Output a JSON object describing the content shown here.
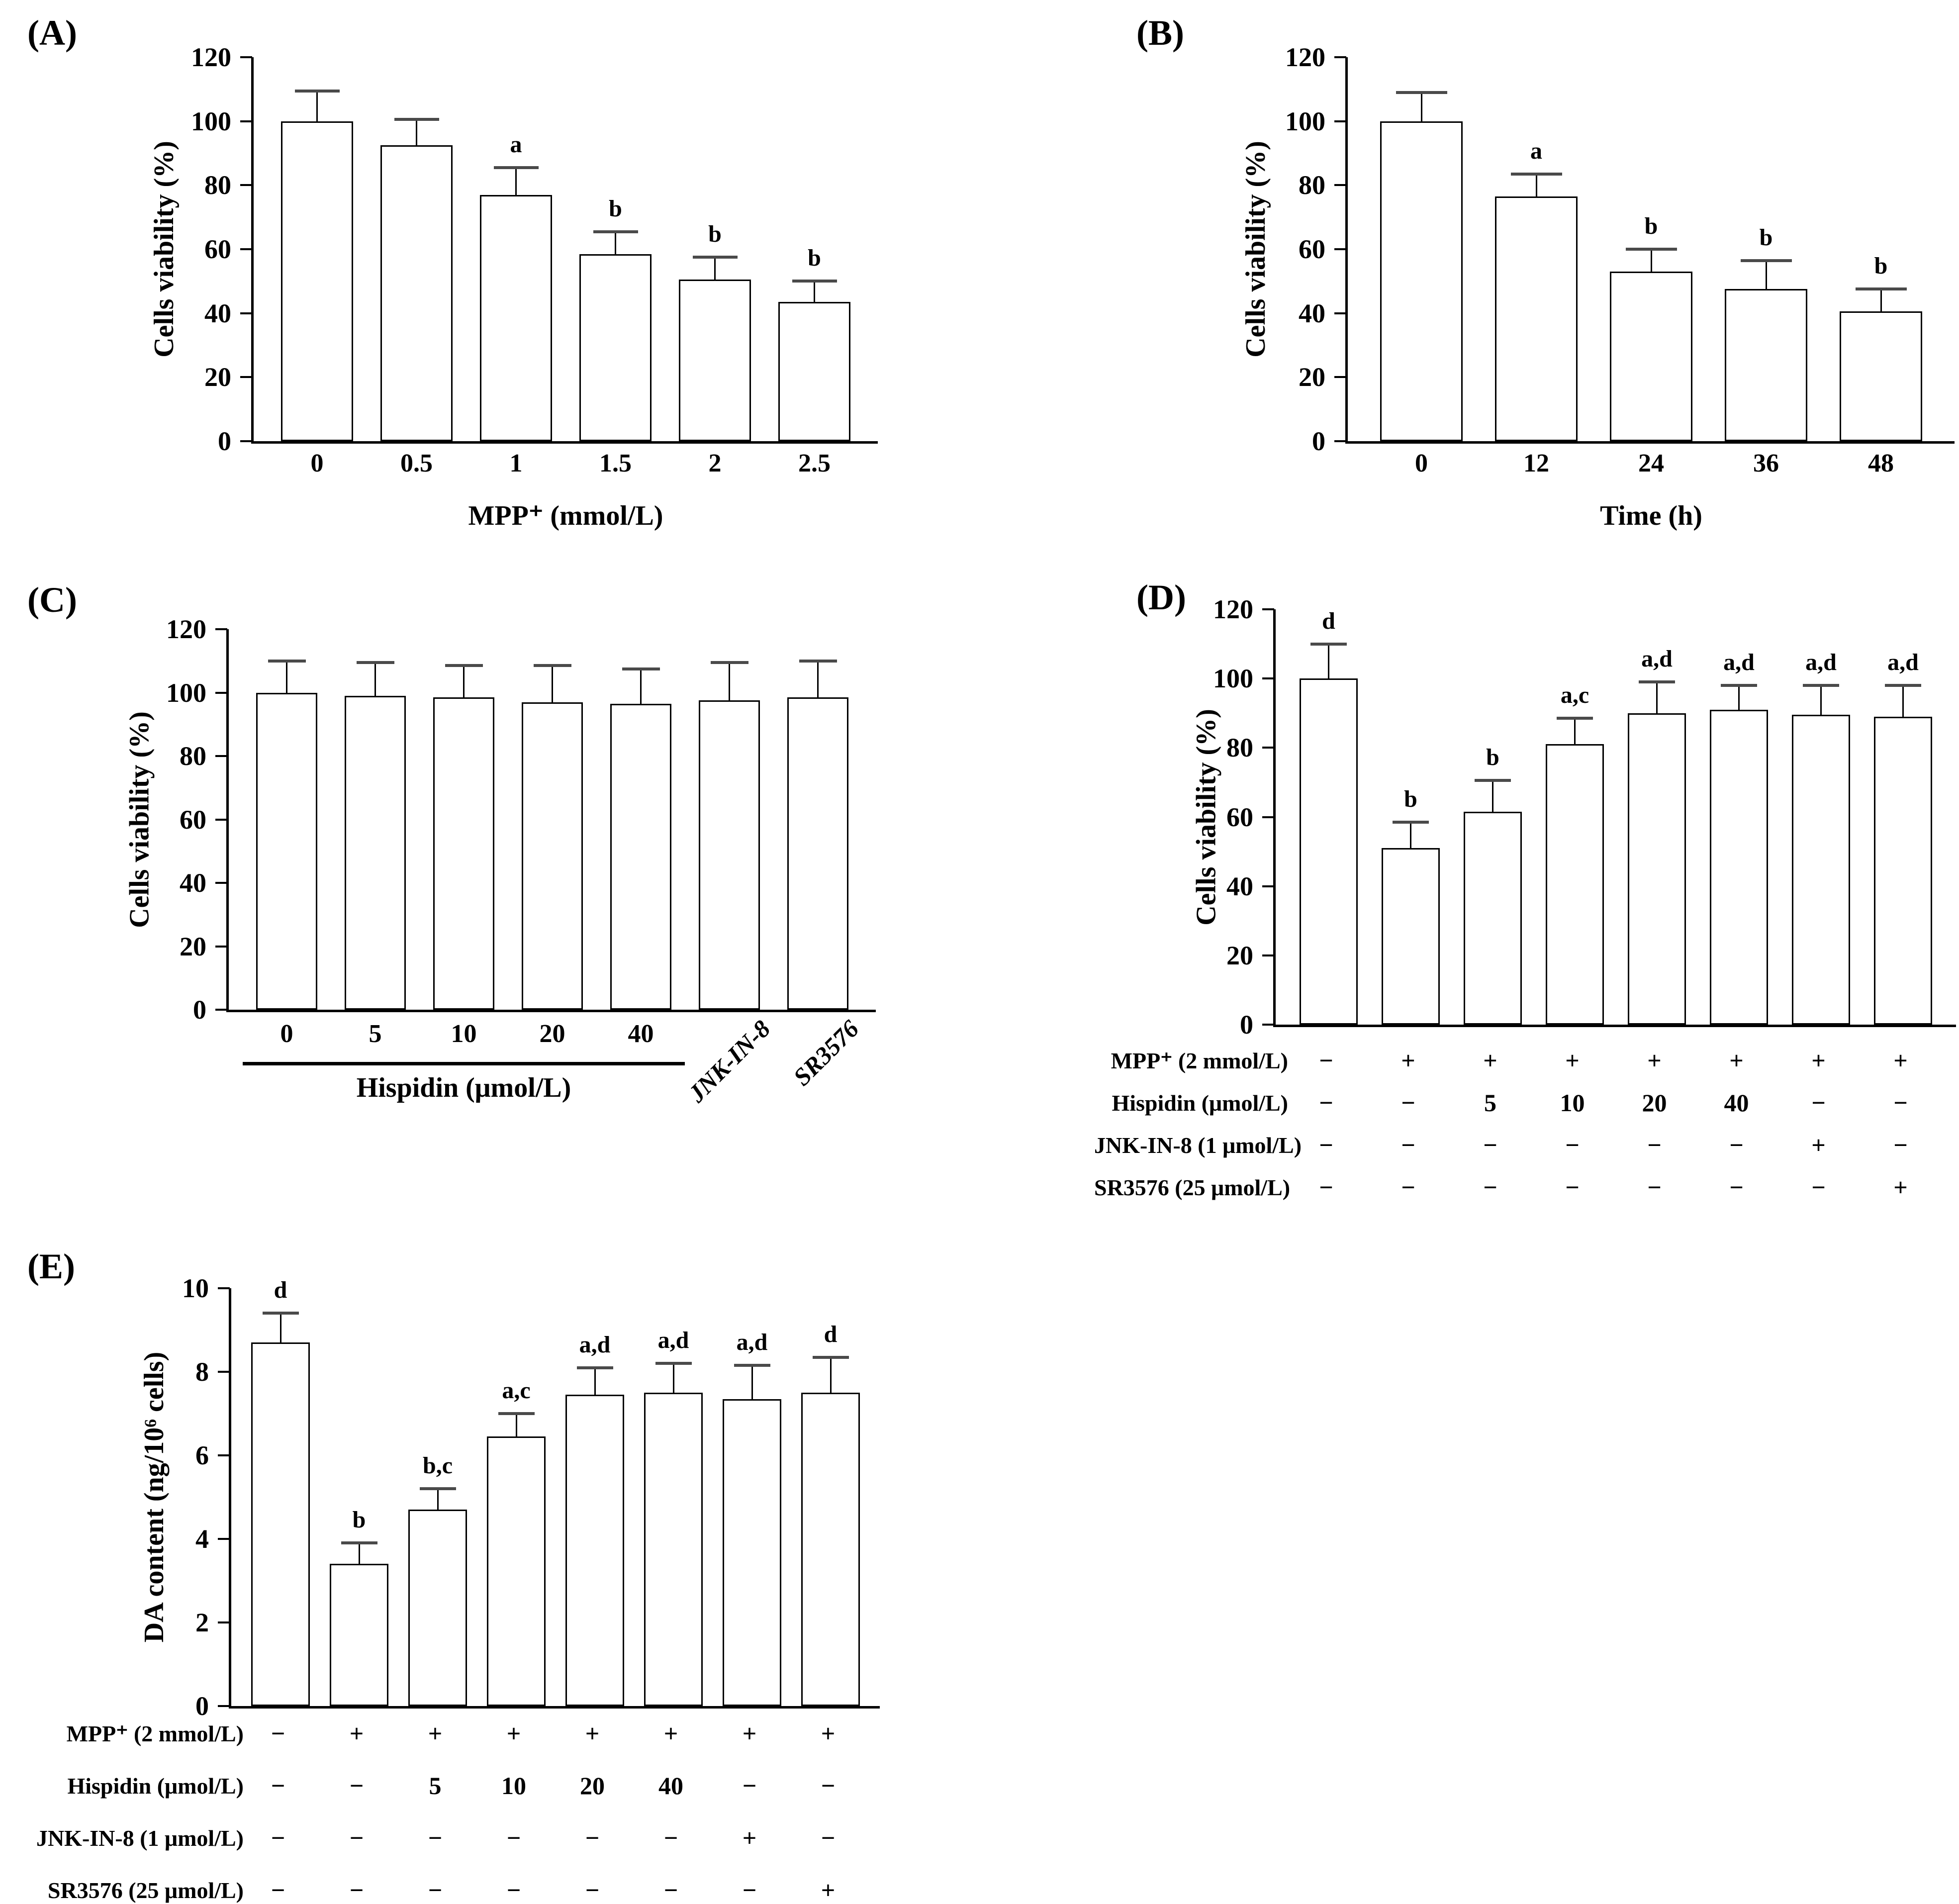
{
  "colors": {
    "bar_fill": "#ffffff",
    "bar_border": "#000000",
    "axis": "#000000",
    "text": "#000000",
    "error_cap": "#4a4a4a"
  },
  "chart_data": [
    {
      "id": "A",
      "type": "bar",
      "panel_label": "(A)",
      "ylabel": "Cells viability (%)",
      "xlabel": "MPP⁺ (mmol/L)",
      "ylim": [
        0,
        120
      ],
      "yticks": [
        0,
        20,
        40,
        60,
        80,
        100,
        120
      ],
      "categories": [
        "0",
        "0.5",
        "1",
        "1.5",
        "2",
        "2.5"
      ],
      "values": [
        100,
        92.5,
        77,
        58.5,
        50.5,
        43.5
      ],
      "errors": [
        9.5,
        8,
        8.5,
        7,
        7,
        6.5
      ],
      "sig": [
        "",
        "",
        "a",
        "b",
        "b",
        "b"
      ]
    },
    {
      "id": "B",
      "type": "bar",
      "panel_label": "(B)",
      "ylabel": "Cells viability (%)",
      "xlabel": "Time (h)",
      "ylim": [
        0,
        120
      ],
      "yticks": [
        0,
        20,
        40,
        60,
        80,
        100,
        120
      ],
      "categories": [
        "0",
        "12",
        "24",
        "36",
        "48"
      ],
      "values": [
        100,
        76.5,
        53,
        47.5,
        40.5
      ],
      "errors": [
        9,
        7,
        7,
        9,
        7
      ],
      "sig": [
        "",
        "a",
        "b",
        "b",
        "b"
      ]
    },
    {
      "id": "C",
      "type": "bar",
      "panel_label": "(C)",
      "ylabel": "Cells viability (%)",
      "xlabel": "",
      "ylim": [
        0,
        120
      ],
      "yticks": [
        0,
        20,
        40,
        60,
        80,
        100,
        120
      ],
      "categories": [
        "0",
        "5",
        "10",
        "20",
        "40",
        "JNK-IN-8",
        "SR3576"
      ],
      "rotated_from": 5,
      "group_label": "Hispidin (μmol/L)",
      "group_span": 5,
      "values": [
        100,
        99,
        98.5,
        97,
        96.5,
        97.5,
        98.5
      ],
      "errors": [
        10,
        10.5,
        10,
        11.5,
        11,
        12,
        11.5
      ],
      "sig": [
        "",
        "",
        "",
        "",
        "",
        "",
        ""
      ]
    },
    {
      "id": "D",
      "type": "bar",
      "panel_label": "(D)",
      "ylabel": "Cells viability (%)",
      "xlabel": "",
      "ylim": [
        0,
        120
      ],
      "yticks": [
        0,
        20,
        40,
        60,
        80,
        100,
        120
      ],
      "categories": [],
      "values": [
        100,
        51,
        61.5,
        81,
        90,
        91,
        89.5,
        89
      ],
      "errors": [
        10,
        7.5,
        9,
        7.5,
        9,
        7,
        8.5,
        9
      ],
      "sig": [
        "d",
        "b",
        "b",
        "a,c",
        "a,d",
        "a,d",
        "a,d",
        "a,d"
      ],
      "matrix": {
        "rows": [
          {
            "label": "MPP⁺ (2 mmol/L)",
            "cells": [
              "−",
              "+",
              "+",
              "+",
              "+",
              "+",
              "+",
              "+"
            ]
          },
          {
            "label": "Hispidin (μmol/L)",
            "cells": [
              "−",
              "−",
              "5",
              "10",
              "20",
              "40",
              "−",
              "−"
            ]
          },
          {
            "label": "JNK-IN-8 (1 μmol/L)",
            "cells": [
              "−",
              "−",
              "−",
              "−",
              "−",
              "−",
              "+",
              "−"
            ]
          },
          {
            "label": "SR3576 (25 μmol/L)",
            "cells": [
              "−",
              "−",
              "−",
              "−",
              "−",
              "−",
              "−",
              "+"
            ]
          }
        ]
      }
    },
    {
      "id": "E",
      "type": "bar",
      "panel_label": "(E)",
      "ylabel": "DA content (ng/10⁶ cells)",
      "xlabel": "",
      "ylim": [
        0,
        10
      ],
      "yticks": [
        0,
        2,
        4,
        6,
        8,
        10
      ],
      "categories": [],
      "values": [
        8.7,
        3.4,
        4.7,
        6.45,
        7.45,
        7.5,
        7.35,
        7.5
      ],
      "errors": [
        0.7,
        0.5,
        0.5,
        0.55,
        0.65,
        0.7,
        0.8,
        0.85
      ],
      "sig": [
        "d",
        "b",
        "b,c",
        "a,c",
        "a,d",
        "a,d",
        "a,d",
        "d"
      ],
      "matrix": {
        "rows": [
          {
            "label": "MPP⁺ (2 mmol/L)",
            "cells": [
              "−",
              "+",
              "+",
              "+",
              "+",
              "+",
              "+",
              "+"
            ]
          },
          {
            "label": "Hispidin (μmol/L)",
            "cells": [
              "−",
              "−",
              "5",
              "10",
              "20",
              "40",
              "−",
              "−"
            ]
          },
          {
            "label": "JNK-IN-8 (1 μmol/L)",
            "cells": [
              "−",
              "−",
              "−",
              "−",
              "−",
              "−",
              "+",
              "−"
            ]
          },
          {
            "label": "SR3576 (25 μmol/L)",
            "cells": [
              "−",
              "−",
              "−",
              "−",
              "−",
              "−",
              "−",
              "+"
            ]
          }
        ]
      }
    }
  ]
}
